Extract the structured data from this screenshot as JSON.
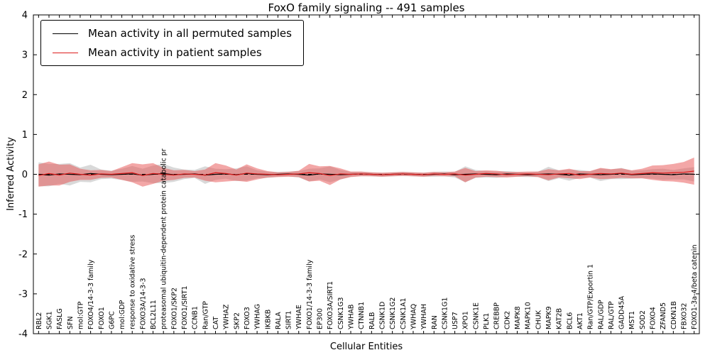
{
  "chart_data": {
    "type": "line",
    "title": "FoxO family signaling -- 491 samples",
    "xlabel": "Cellular Entities",
    "ylabel": "Inferred Activity",
    "ylim": [
      -4,
      4
    ],
    "yticks": [
      -4,
      -3,
      -2,
      -1,
      0,
      1,
      2,
      3,
      4
    ],
    "ytick_labels": [
      "-4",
      "-3",
      "-2",
      "-1",
      "0",
      "1",
      "2",
      "3",
      "4"
    ],
    "grid": false,
    "legend_position": "upper left",
    "zero_line": {
      "style": "dashed",
      "color": "#000000"
    },
    "categories": [
      "RBL2",
      "SGK1",
      "FASLG",
      "SFN",
      "mol:GTP",
      "FOXO4/14-3-3 family",
      "FOXO1",
      "G6PC",
      "mol:GDP",
      "response to oxidative stress",
      "FOXO3A/14-3-3",
      "BCL2L11",
      "proteasomal ubiquitin-dependent protein catabolic pr",
      "FOXO1/SKP2",
      "FOXO1/SIRT1",
      "CCNB1",
      "Ran/GTP",
      "CAT",
      "YWHAZ",
      "SKP2",
      "FOXO3",
      "YWHAG",
      "IKBKB",
      "RALA",
      "SIRT1",
      "YWHAE",
      "FOXO1/14-3-3 family",
      "EP300",
      "FOXO3A/SIRT1",
      "CSNK1G3",
      "YWHAB",
      "CTNNB1",
      "RALB",
      "CSNK1D",
      "CSNK1G2",
      "CSNK1A1",
      "YWHAQ",
      "YWHAH",
      "RAN",
      "CSNK1G1",
      "USP7",
      "XPO1",
      "CSNK1E",
      "PLK1",
      "CREBBP",
      "CDK2",
      "MAPK8",
      "MAPK10",
      "CHUK",
      "MAPK9",
      "KAT2B",
      "BCL6",
      "AKT1",
      "Ran/GTP/Exportin 1",
      "RAL/GDP",
      "RAL/GTP",
      "GADD45A",
      "MST1",
      "SOD2",
      "FOXO4",
      "ZFAND5",
      "CDKN1B",
      "FBXO32",
      "FOXO1-3a-4/beta catenin"
    ],
    "series": [
      {
        "name": "Mean activity in all permuted samples",
        "line_color": "#000000",
        "band_color": "#8a8a8a",
        "band_opacity": 0.32,
        "mean": [
          0.0,
          -0.02,
          0.01,
          0.0,
          -0.01,
          0.02,
          0.0,
          -0.01,
          0.0,
          0.01,
          -0.02,
          0.0,
          0.02,
          -0.01,
          0.0,
          0.01,
          -0.02,
          0.0,
          0.01,
          -0.01,
          0.02,
          0.0,
          -0.01,
          0.0,
          0.01,
          0.0,
          -0.02,
          0.01,
          0.0,
          -0.01,
          0.0,
          0.01,
          0.0,
          -0.01,
          0.0,
          0.01,
          0.0,
          -0.01,
          0.0,
          0.01,
          -0.01,
          0.0,
          0.01,
          0.0,
          -0.01,
          0.01,
          0.0,
          -0.01,
          0.0,
          0.01,
          0.0,
          -0.02,
          0.01,
          0.0,
          -0.01,
          0.0,
          0.02,
          -0.01,
          0.0,
          0.01,
          0.0,
          -0.01,
          0.01,
          0.0
        ],
        "band": [
          0.3,
          0.28,
          0.25,
          0.28,
          0.18,
          0.22,
          0.12,
          0.1,
          0.14,
          0.2,
          0.16,
          0.22,
          0.24,
          0.18,
          0.12,
          0.1,
          0.22,
          0.14,
          0.12,
          0.16,
          0.18,
          0.1,
          0.08,
          0.06,
          0.06,
          0.08,
          0.16,
          0.14,
          0.2,
          0.12,
          0.06,
          0.05,
          0.05,
          0.05,
          0.05,
          0.05,
          0.05,
          0.05,
          0.06,
          0.06,
          0.07,
          0.2,
          0.1,
          0.08,
          0.08,
          0.07,
          0.06,
          0.06,
          0.07,
          0.18,
          0.1,
          0.14,
          0.1,
          0.08,
          0.16,
          0.12,
          0.14,
          0.1,
          0.1,
          0.12,
          0.14,
          0.12,
          0.14,
          0.18
        ]
      },
      {
        "name": "Mean activity in patient samples",
        "line_color": "#dd1c1c",
        "band_color": "#e85050",
        "band_opacity": 0.5,
        "mean": [
          -0.03,
          0.02,
          -0.02,
          0.03,
          0.0,
          -0.02,
          0.01,
          0.0,
          0.02,
          0.04,
          -0.03,
          0.02,
          0.0,
          -0.02,
          0.01,
          0.0,
          -0.02,
          0.04,
          0.02,
          -0.02,
          0.03,
          0.01,
          0.0,
          -0.01,
          0.0,
          0.01,
          0.04,
          0.02,
          -0.03,
          0.01,
          0.0,
          0.01,
          0.0,
          -0.01,
          0.0,
          0.01,
          0.0,
          -0.01,
          0.01,
          0.0,
          0.01,
          -0.02,
          0.0,
          0.02,
          0.01,
          -0.01,
          0.0,
          0.01,
          0.0,
          -0.01,
          0.01,
          0.02,
          -0.02,
          0.0,
          0.02,
          0.01,
          0.03,
          0.0,
          0.02,
          0.04,
          0.03,
          0.04,
          0.05,
          0.08
        ],
        "band": [
          0.28,
          0.3,
          0.26,
          0.22,
          0.14,
          0.12,
          0.1,
          0.08,
          0.16,
          0.24,
          0.28,
          0.26,
          0.16,
          0.12,
          0.1,
          0.08,
          0.14,
          0.24,
          0.2,
          0.14,
          0.22,
          0.14,
          0.08,
          0.06,
          0.06,
          0.08,
          0.22,
          0.18,
          0.24,
          0.14,
          0.07,
          0.06,
          0.05,
          0.05,
          0.05,
          0.05,
          0.05,
          0.05,
          0.05,
          0.05,
          0.06,
          0.18,
          0.08,
          0.08,
          0.08,
          0.07,
          0.06,
          0.06,
          0.07,
          0.14,
          0.09,
          0.12,
          0.1,
          0.08,
          0.14,
          0.12,
          0.12,
          0.1,
          0.12,
          0.18,
          0.2,
          0.22,
          0.26,
          0.34
        ]
      }
    ]
  }
}
